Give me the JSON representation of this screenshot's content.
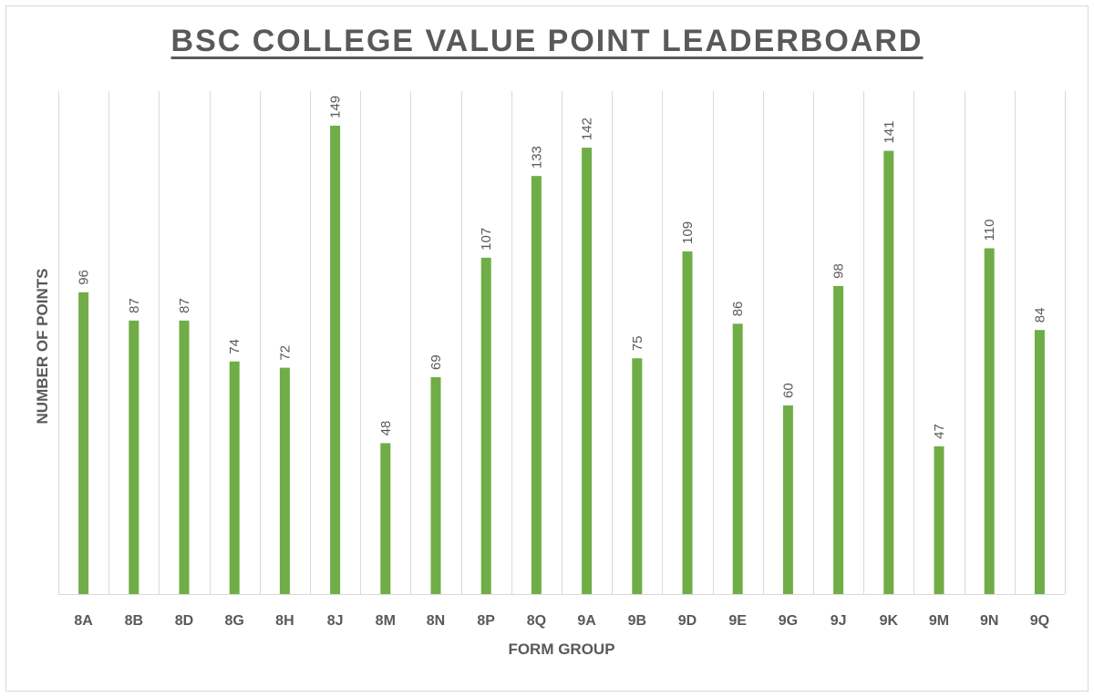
{
  "chart_data": {
    "type": "bar",
    "title": "BSC COLLEGE VALUE POINT LEADERBOARD",
    "xlabel": "FORM GROUP",
    "ylabel": "NUMBER OF POINTS",
    "categories": [
      "8A",
      "8B",
      "8D",
      "8G",
      "8H",
      "8J",
      "8M",
      "8N",
      "8P",
      "8Q",
      "9A",
      "9B",
      "9D",
      "9E",
      "9G",
      "9J",
      "9K",
      "9M",
      "9N",
      "9Q"
    ],
    "values": [
      96,
      87,
      87,
      74,
      72,
      149,
      48,
      69,
      107,
      133,
      142,
      75,
      109,
      86,
      60,
      98,
      141,
      47,
      110,
      84
    ],
    "ylim": [
      0,
      160
    ],
    "grid": "vertical",
    "legend": "none",
    "bar_color": "#70ad47",
    "data_labels": true
  }
}
